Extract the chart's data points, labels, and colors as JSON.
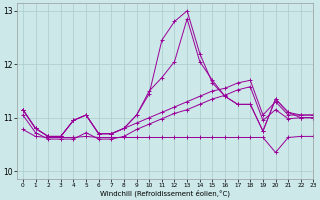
{
  "xlabel": "Windchill (Refroidissement éolien,°C)",
  "background_color": "#cce8e8",
  "grid_color": "#aacccc",
  "line_color": "#990099",
  "xlim": [
    -0.5,
    23
  ],
  "ylim": [
    9.85,
    13.15
  ],
  "yticks": [
    10,
    11,
    12,
    13
  ],
  "xticks": [
    0,
    1,
    2,
    3,
    4,
    5,
    6,
    7,
    8,
    9,
    10,
    11,
    12,
    13,
    14,
    15,
    16,
    17,
    18,
    19,
    20,
    21,
    22,
    23
  ],
  "series": {
    "spike_high": [
      11.15,
      10.8,
      10.65,
      10.65,
      10.95,
      11.05,
      10.7,
      10.7,
      10.8,
      11.05,
      11.45,
      12.45,
      12.8,
      13.0,
      12.2,
      11.65,
      11.4,
      11.25,
      11.25,
      10.75,
      11.35,
      11.1,
      11.05,
      11.05
    ],
    "spike_med": [
      11.15,
      10.8,
      10.65,
      10.65,
      10.95,
      11.05,
      10.7,
      10.7,
      10.8,
      11.05,
      11.5,
      11.75,
      12.05,
      12.85,
      12.05,
      11.7,
      11.4,
      11.25,
      11.25,
      10.75,
      11.35,
      11.1,
      11.0,
      11.0
    ],
    "rising1": [
      11.15,
      10.8,
      10.65,
      10.65,
      10.95,
      11.05,
      10.7,
      10.7,
      10.8,
      10.9,
      11.0,
      11.1,
      11.2,
      11.3,
      11.4,
      11.5,
      11.55,
      11.65,
      11.7,
      11.05,
      11.3,
      11.05,
      11.05,
      11.05
    ],
    "rising2": [
      11.05,
      10.72,
      10.6,
      10.6,
      10.6,
      10.72,
      10.6,
      10.6,
      10.65,
      10.78,
      10.88,
      10.98,
      11.08,
      11.15,
      11.25,
      11.35,
      11.42,
      11.52,
      11.58,
      10.95,
      11.15,
      10.98,
      11.0,
      11.0
    ],
    "flat_low": [
      10.78,
      10.65,
      10.63,
      10.63,
      10.63,
      10.65,
      10.63,
      10.63,
      10.63,
      10.63,
      10.63,
      10.63,
      10.63,
      10.63,
      10.63,
      10.63,
      10.63,
      10.63,
      10.63,
      10.63,
      10.35,
      10.63,
      10.65,
      10.65
    ]
  }
}
